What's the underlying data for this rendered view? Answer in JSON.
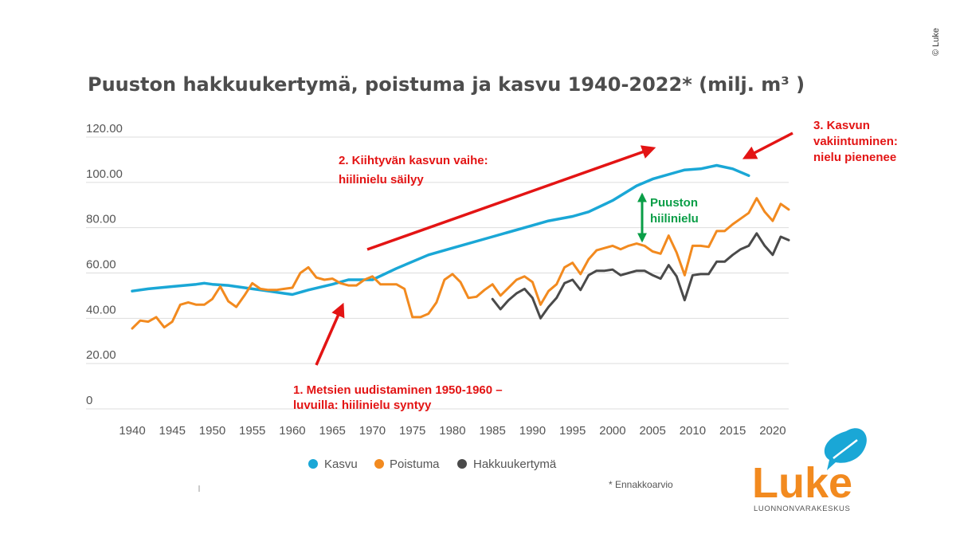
{
  "copyright": "© Luke",
  "footnote": "* Ennakkoarvio",
  "logo": {
    "name": "Luke",
    "subtitle": "LUONNONVARAKESKUS",
    "color": "#f28a1f"
  },
  "colors": {
    "kasvu": "#1aa7d6",
    "poistuma": "#f28a1f",
    "hakkuu": "#4a4a4a",
    "annotation_red": "#e31414",
    "annotation_green": "#0a9e47",
    "grid": "#dddddd"
  },
  "annotations": {
    "a1": [
      "1. Metsien uudistaminen 1950-1960 –",
      "luvuilla: hiilinielu syntyy"
    ],
    "a2": [
      "2. Kiihtyvän kasvun vaihe:",
      "hiilinielu säilyy"
    ],
    "a3": [
      "3. Kasvun",
      "vakiintuminen:",
      "nielu pienenee"
    ],
    "green": [
      "Puuston",
      "hiilinielu"
    ]
  },
  "chart_data": {
    "type": "line",
    "title": "Puuston hakkuukertymä, poistuma ja kasvu 1940-2022* (milj. m³ )",
    "xlabel": "",
    "ylabel": "",
    "xlim": [
      1940,
      2022
    ],
    "ylim": [
      0,
      120
    ],
    "y_tick_labels": [
      "0",
      "20.00",
      "40.00",
      "60.00",
      "80.00",
      "100.00",
      "120.00"
    ],
    "x_tick_labels": [
      "1940",
      "1945",
      "1950",
      "1955",
      "1960",
      "1965",
      "1970",
      "1975",
      "1980",
      "1985",
      "1990",
      "1995",
      "2000",
      "2005",
      "2010",
      "2015",
      "2020"
    ],
    "grid": true,
    "legend_position": "bottom",
    "series": [
      {
        "name": "Kasvu",
        "points": [
          [
            1940,
            52
          ],
          [
            1942,
            53
          ],
          [
            1945,
            54
          ],
          [
            1948,
            55
          ],
          [
            1949,
            55.5
          ],
          [
            1950,
            55
          ],
          [
            1952,
            54.5
          ],
          [
            1955,
            53
          ],
          [
            1957,
            52
          ],
          [
            1959,
            51
          ],
          [
            1960,
            50.5
          ],
          [
            1962,
            52.5
          ],
          [
            1965,
            55
          ],
          [
            1967,
            57
          ],
          [
            1970,
            57
          ],
          [
            1973,
            62
          ],
          [
            1977,
            68
          ],
          [
            1980,
            71
          ],
          [
            1985,
            76
          ],
          [
            1990,
            81
          ],
          [
            1992,
            83
          ],
          [
            1995,
            85
          ],
          [
            1997,
            87
          ],
          [
            2000,
            92
          ],
          [
            2003,
            98.5
          ],
          [
            2005,
            101.5
          ],
          [
            2008,
            104.5
          ],
          [
            2009,
            105.5
          ],
          [
            2011,
            106
          ],
          [
            2013,
            107.5
          ],
          [
            2015,
            106
          ],
          [
            2017,
            103
          ]
        ]
      },
      {
        "name": "Poistuma",
        "points": [
          [
            1940,
            35.5
          ],
          [
            1941,
            39
          ],
          [
            1942,
            38.5
          ],
          [
            1943,
            40.5
          ],
          [
            1944,
            36
          ],
          [
            1945,
            38.5
          ],
          [
            1946,
            46
          ],
          [
            1947,
            47
          ],
          [
            1948,
            46
          ],
          [
            1949,
            46
          ],
          [
            1950,
            48.5
          ],
          [
            1951,
            54
          ],
          [
            1952,
            47.5
          ],
          [
            1953,
            45
          ],
          [
            1954,
            50
          ],
          [
            1955,
            55.5
          ],
          [
            1956,
            53
          ],
          [
            1957,
            52.5
          ],
          [
            1958,
            52.5
          ],
          [
            1959,
            53
          ],
          [
            1960,
            53.5
          ],
          [
            1961,
            60
          ],
          [
            1962,
            62.5
          ],
          [
            1963,
            58
          ],
          [
            1964,
            57
          ],
          [
            1965,
            57.5
          ],
          [
            1966,
            55.5
          ],
          [
            1967,
            54.5
          ],
          [
            1968,
            54.5
          ],
          [
            1969,
            57
          ],
          [
            1970,
            58.5
          ],
          [
            1971,
            55
          ],
          [
            1972,
            55
          ],
          [
            1973,
            55
          ],
          [
            1974,
            53
          ],
          [
            1975,
            40.5
          ],
          [
            1976,
            40.5
          ],
          [
            1977,
            42
          ],
          [
            1978,
            47
          ],
          [
            1979,
            57
          ],
          [
            1980,
            59.5
          ],
          [
            1981,
            56
          ],
          [
            1982,
            49
          ],
          [
            1983,
            49.5
          ],
          [
            1984,
            52.5
          ],
          [
            1985,
            55
          ],
          [
            1986,
            50
          ],
          [
            1987,
            53.5
          ],
          [
            1988,
            57
          ],
          [
            1989,
            58.5
          ],
          [
            1990,
            56
          ],
          [
            1991,
            46
          ],
          [
            1992,
            52
          ],
          [
            1993,
            55
          ],
          [
            1994,
            62.5
          ],
          [
            1995,
            64.5
          ],
          [
            1996,
            59.5
          ],
          [
            1997,
            66
          ],
          [
            1998,
            70
          ],
          [
            1999,
            71
          ],
          [
            2000,
            72
          ],
          [
            2001,
            70.5
          ],
          [
            2002,
            72
          ],
          [
            2003,
            73
          ],
          [
            2004,
            72
          ],
          [
            2005,
            69.5
          ],
          [
            2006,
            68.5
          ],
          [
            2007,
            76.5
          ],
          [
            2008,
            69
          ],
          [
            2009,
            59
          ],
          [
            2010,
            72
          ],
          [
            2011,
            72
          ],
          [
            2012,
            71.5
          ],
          [
            2013,
            78.5
          ],
          [
            2014,
            78.5
          ],
          [
            2015,
            81.5
          ],
          [
            2016,
            84
          ],
          [
            2017,
            86.5
          ],
          [
            2018,
            93
          ],
          [
            2019,
            87
          ],
          [
            2020,
            83
          ],
          [
            2021,
            90.5
          ],
          [
            2022,
            88
          ]
        ]
      },
      {
        "name": "Hakkuukertymä",
        "points": [
          [
            1985,
            48.5
          ],
          [
            1986,
            44
          ],
          [
            1987,
            48
          ],
          [
            1988,
            51
          ],
          [
            1989,
            53
          ],
          [
            1990,
            49
          ],
          [
            1991,
            40
          ],
          [
            1992,
            45
          ],
          [
            1993,
            49
          ],
          [
            1994,
            55.5
          ],
          [
            1995,
            57
          ],
          [
            1996,
            52.5
          ],
          [
            1997,
            59
          ],
          [
            1998,
            61
          ],
          [
            1999,
            61
          ],
          [
            2000,
            61.5
          ],
          [
            2001,
            59
          ],
          [
            2002,
            60
          ],
          [
            2003,
            61
          ],
          [
            2004,
            61
          ],
          [
            2005,
            59
          ],
          [
            2006,
            57.5
          ],
          [
            2007,
            63.5
          ],
          [
            2008,
            58.5
          ],
          [
            2009,
            48
          ],
          [
            2010,
            59
          ],
          [
            2011,
            59.5
          ],
          [
            2012,
            59.5
          ],
          [
            2013,
            65
          ],
          [
            2014,
            65
          ],
          [
            2015,
            68
          ],
          [
            2016,
            70.5
          ],
          [
            2017,
            72
          ],
          [
            2018,
            77.5
          ],
          [
            2019,
            72
          ],
          [
            2020,
            68
          ],
          [
            2021,
            76
          ],
          [
            2022,
            74.5
          ]
        ]
      }
    ]
  }
}
